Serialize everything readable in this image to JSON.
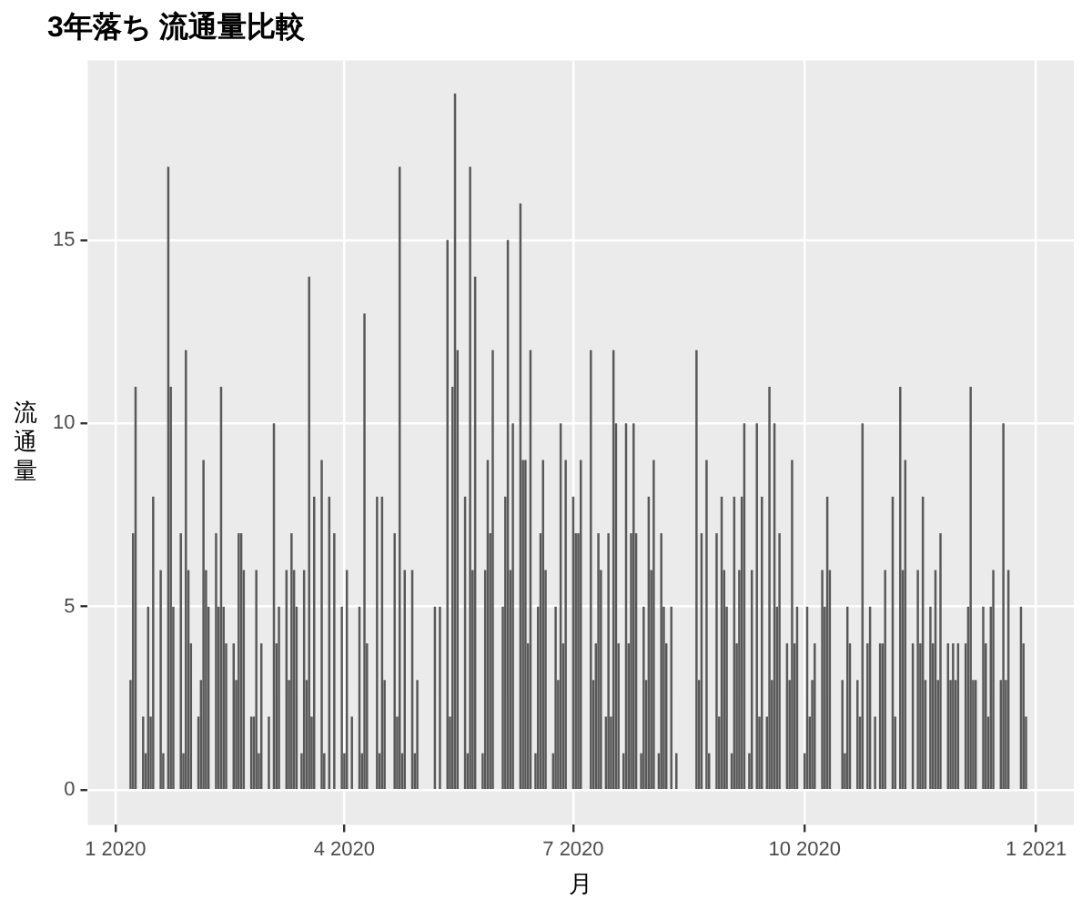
{
  "chart_data": {
    "type": "bar",
    "title": "3年落ち 流通量比較",
    "xlabel": "月",
    "ylabel": "流通量",
    "color": "#595959",
    "grid": true,
    "xlim": [
      "2019-12-21",
      "2021-01-16"
    ],
    "xticks": [
      {
        "value": "2020-01-01",
        "label": "1 2020"
      },
      {
        "value": "2020-04-01",
        "label": "4 2020"
      },
      {
        "value": "2020-07-01",
        "label": "7 2020"
      },
      {
        "value": "2020-10-01",
        "label": "10 2020"
      },
      {
        "value": "2021-01-01",
        "label": "1 2021"
      }
    ],
    "ylim": [
      -0.95,
      19.9
    ],
    "yticks": [
      0,
      5,
      10,
      15
    ],
    "x": [
      "2020-01-07",
      "2020-01-08",
      "2020-01-09",
      "2020-01-12",
      "2020-01-13",
      "2020-01-14",
      "2020-01-15",
      "2020-01-16",
      "2020-01-19",
      "2020-01-20",
      "2020-01-22",
      "2020-01-23",
      "2020-01-24",
      "2020-01-27",
      "2020-01-28",
      "2020-01-29",
      "2020-01-30",
      "2020-01-31",
      "2020-02-03",
      "2020-02-04",
      "2020-02-05",
      "2020-02-06",
      "2020-02-07",
      "2020-02-10",
      "2020-02-11",
      "2020-02-12",
      "2020-02-13",
      "2020-02-14",
      "2020-02-17",
      "2020-02-18",
      "2020-02-19",
      "2020-02-20",
      "2020-02-21",
      "2020-02-24",
      "2020-02-25",
      "2020-02-26",
      "2020-02-27",
      "2020-02-28",
      "2020-03-02",
      "2020-03-04",
      "2020-03-05",
      "2020-03-06",
      "2020-03-09",
      "2020-03-10",
      "2020-03-11",
      "2020-03-12",
      "2020-03-13",
      "2020-03-15",
      "2020-03-16",
      "2020-03-17",
      "2020-03-18",
      "2020-03-19",
      "2020-03-20",
      "2020-03-23",
      "2020-03-24",
      "2020-03-26",
      "2020-03-28",
      "2020-03-31",
      "2020-04-01",
      "2020-04-02",
      "2020-04-04",
      "2020-04-07",
      "2020-04-08",
      "2020-04-09",
      "2020-04-10",
      "2020-04-14",
      "2020-04-15",
      "2020-04-16",
      "2020-04-17",
      "2020-04-21",
      "2020-04-22",
      "2020-04-23",
      "2020-04-24",
      "2020-04-25",
      "2020-04-28",
      "2020-04-29",
      "2020-04-30",
      "2020-05-07",
      "2020-05-09",
      "2020-05-12",
      "2020-05-13",
      "2020-05-14",
      "2020-05-15",
      "2020-05-16",
      "2020-05-19",
      "2020-05-20",
      "2020-05-21",
      "2020-05-22",
      "2020-05-23",
      "2020-05-26",
      "2020-05-27",
      "2020-05-28",
      "2020-05-29",
      "2020-05-30",
      "2020-06-03",
      "2020-06-04",
      "2020-06-05",
      "2020-06-06",
      "2020-06-07",
      "2020-06-10",
      "2020-06-11",
      "2020-06-12",
      "2020-06-13",
      "2020-06-14",
      "2020-06-16",
      "2020-06-17",
      "2020-06-18",
      "2020-06-19",
      "2020-06-20",
      "2020-06-23",
      "2020-06-24",
      "2020-06-25",
      "2020-06-26",
      "2020-06-27",
      "2020-06-28",
      "2020-07-01",
      "2020-07-02",
      "2020-07-03",
      "2020-07-04",
      "2020-07-08",
      "2020-07-09",
      "2020-07-10",
      "2020-07-11",
      "2020-07-12",
      "2020-07-14",
      "2020-07-15",
      "2020-07-16",
      "2020-07-17",
      "2020-07-18",
      "2020-07-19",
      "2020-07-21",
      "2020-07-22",
      "2020-07-23",
      "2020-07-24",
      "2020-07-25",
      "2020-07-26",
      "2020-07-28",
      "2020-07-29",
      "2020-07-30",
      "2020-07-31",
      "2020-08-01",
      "2020-08-02",
      "2020-08-04",
      "2020-08-05",
      "2020-08-06",
      "2020-08-07",
      "2020-08-09",
      "2020-08-11",
      "2020-08-19",
      "2020-08-20",
      "2020-08-21",
      "2020-08-23",
      "2020-08-24",
      "2020-08-27",
      "2020-08-28",
      "2020-08-29",
      "2020-08-30",
      "2020-08-31",
      "2020-09-02",
      "2020-09-03",
      "2020-09-04",
      "2020-09-05",
      "2020-09-06",
      "2020-09-07",
      "2020-09-09",
      "2020-09-10",
      "2020-09-12",
      "2020-09-13",
      "2020-09-14",
      "2020-09-16",
      "2020-09-17",
      "2020-09-18",
      "2020-09-19",
      "2020-09-20",
      "2020-09-21",
      "2020-09-24",
      "2020-09-25",
      "2020-09-26",
      "2020-09-27",
      "2020-09-28",
      "2020-10-01",
      "2020-10-02",
      "2020-10-03",
      "2020-10-04",
      "2020-10-05",
      "2020-10-08",
      "2020-10-09",
      "2020-10-10",
      "2020-10-11",
      "2020-10-16",
      "2020-10-17",
      "2020-10-18",
      "2020-10-19",
      "2020-10-22",
      "2020-10-23",
      "2020-10-24",
      "2020-10-26",
      "2020-10-27",
      "2020-10-29",
      "2020-10-31",
      "2020-11-01",
      "2020-11-02",
      "2020-11-05",
      "2020-11-06",
      "2020-11-08",
      "2020-11-09",
      "2020-11-10",
      "2020-11-13",
      "2020-11-15",
      "2020-11-16",
      "2020-11-17",
      "2020-11-18",
      "2020-11-20",
      "2020-11-21",
      "2020-11-22",
      "2020-11-23",
      "2020-11-24",
      "2020-11-27",
      "2020-11-28",
      "2020-11-29",
      "2020-11-30",
      "2020-12-01",
      "2020-12-04",
      "2020-12-05",
      "2020-12-06",
      "2020-12-07",
      "2020-12-08",
      "2020-12-11",
      "2020-12-12",
      "2020-12-13",
      "2020-12-14",
      "2020-12-15",
      "2020-12-18",
      "2020-12-19",
      "2020-12-20",
      "2020-12-21",
      "2020-12-26",
      "2020-12-27",
      "2020-12-28"
    ],
    "values": [
      3,
      7,
      11,
      2,
      1,
      5,
      2,
      8,
      6,
      1,
      17,
      11,
      5,
      7,
      1,
      12,
      6,
      4,
      2,
      3,
      9,
      6,
      5,
      7,
      5,
      11,
      5,
      4,
      4,
      3,
      7,
      7,
      6,
      2,
      2,
      6,
      1,
      4,
      2,
      10,
      4,
      5,
      6,
      3,
      7,
      6,
      5,
      1,
      6,
      3,
      14,
      2,
      8,
      9,
      1,
      8,
      7,
      5,
      1,
      6,
      2,
      5,
      1,
      13,
      4,
      8,
      1,
      8,
      3,
      7,
      2,
      17,
      1,
      6,
      6,
      1,
      3,
      5,
      5,
      15,
      2,
      11,
      19,
      12,
      8,
      1,
      17,
      6,
      14,
      1,
      6,
      9,
      7,
      12,
      5,
      8,
      15,
      6,
      10,
      16,
      9,
      9,
      4,
      12,
      1,
      5,
      7,
      9,
      6,
      1,
      5,
      3,
      10,
      4,
      9,
      8,
      7,
      7,
      9,
      12,
      3,
      4,
      7,
      6,
      2,
      7,
      2,
      12,
      10,
      4,
      1,
      10,
      4,
      7,
      10,
      7,
      1,
      5,
      3,
      8,
      6,
      9,
      1,
      7,
      5,
      4,
      5,
      1,
      12,
      3,
      7,
      9,
      1,
      7,
      2,
      8,
      6,
      5,
      1,
      8,
      4,
      6,
      8,
      10,
      1,
      6,
      10,
      2,
      8,
      2,
      11,
      3,
      10,
      5,
      7,
      4,
      3,
      9,
      4,
      5,
      1,
      5,
      2,
      3,
      4,
      6,
      5,
      8,
      6,
      3,
      1,
      5,
      4,
      3,
      2,
      10,
      4,
      5,
      2,
      4,
      4,
      6,
      8,
      2,
      11,
      6,
      9,
      4,
      6,
      4,
      8,
      3,
      5,
      4,
      6,
      3,
      7,
      4,
      3,
      4,
      3,
      4,
      4,
      5,
      11,
      3,
      3,
      5,
      4,
      2,
      5,
      6,
      3,
      10,
      3,
      6,
      5,
      4,
      2
    ]
  }
}
